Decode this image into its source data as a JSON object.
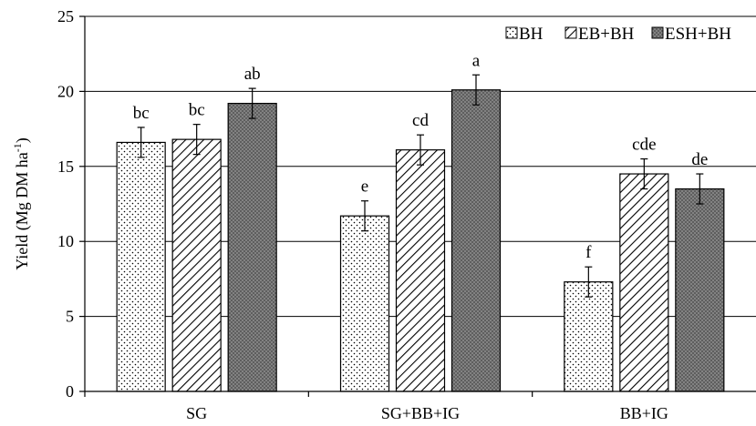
{
  "chart_data": {
    "type": "bar",
    "ylabel": "Yield (Mg DM ha",
    "ylabel_superscript": "-1",
    "ylabel_suffix": ")",
    "ylim": [
      0,
      25
    ],
    "yticks": [
      "0",
      "5",
      "10",
      "15",
      "20",
      "25"
    ],
    "grid": "horizontal",
    "legend_position": "top-right",
    "categories": [
      "SG",
      "SG+BB+IG",
      "BB+IG"
    ],
    "series": [
      {
        "name": "BH",
        "pattern": "dots",
        "values": [
          16.6,
          11.7,
          7.3
        ],
        "errors": [
          1.0,
          1.0,
          1.0
        ],
        "labels": [
          "bc",
          "e",
          "f"
        ]
      },
      {
        "name": "EB+BH",
        "pattern": "diagonal",
        "values": [
          16.8,
          16.1,
          14.5
        ],
        "errors": [
          1.0,
          1.0,
          1.0
        ],
        "labels": [
          "bc",
          "cd",
          "cde"
        ]
      },
      {
        "name": "ESH+BH",
        "pattern": "crosshatch",
        "values": [
          19.2,
          20.1,
          13.5
        ],
        "errors": [
          1.0,
          1.0,
          1.0
        ],
        "labels": [
          "ab",
          "a",
          "de"
        ]
      }
    ],
    "colors": {
      "axis": "#000000",
      "grid": "#000000",
      "bar_stroke": "#000000",
      "dark_fill": "#8c8c8c"
    }
  }
}
